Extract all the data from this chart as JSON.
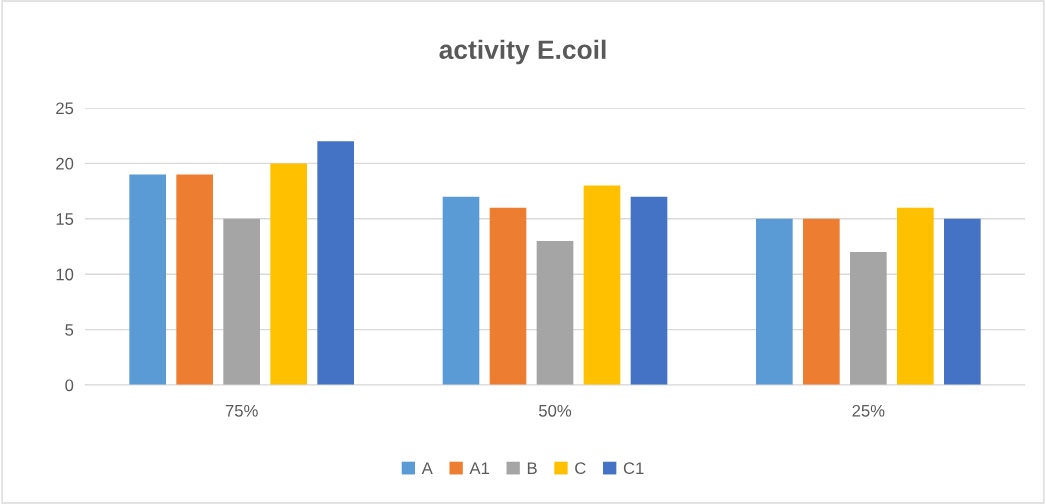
{
  "chart_data": {
    "type": "bar",
    "title": "activity E.coil",
    "categories": [
      "75%",
      "50%",
      "25%"
    ],
    "series": [
      {
        "name": "A",
        "color": "#5b9bd5",
        "values": [
          19,
          17,
          15
        ]
      },
      {
        "name": "A1",
        "color": "#ed7d31",
        "values": [
          19,
          16,
          15
        ]
      },
      {
        "name": "B",
        "color": "#a5a5a5",
        "values": [
          15,
          13,
          12
        ]
      },
      {
        "name": "C",
        "color": "#ffc000",
        "values": [
          20,
          18,
          16
        ]
      },
      {
        "name": "C1",
        "color": "#4472c4",
        "values": [
          22,
          17,
          15
        ]
      }
    ],
    "ylim": [
      0,
      25
    ],
    "yticks": [
      0,
      5,
      10,
      15,
      20,
      25
    ],
    "grid": "y",
    "legend": "bottom"
  }
}
